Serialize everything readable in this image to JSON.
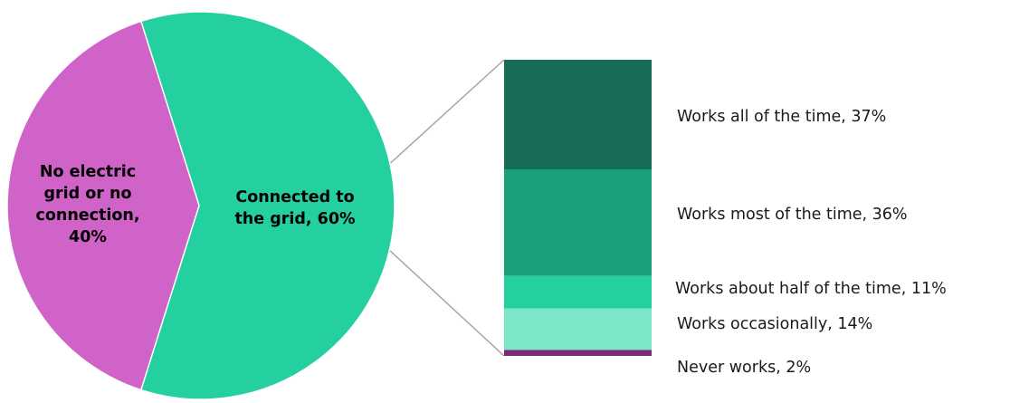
{
  "chart_data": {
    "type": "bar-of-pie",
    "pie": {
      "slices": [
        {
          "name": "No electric grid or no connection",
          "value": 40,
          "label_lines": [
            "No electric",
            "grid or no",
            "connection,",
            "40%"
          ],
          "color": "#cf63c8"
        },
        {
          "name": "Connected to the grid",
          "value": 60,
          "label_lines": [
            "Connected to",
            "the grid, 60%"
          ],
          "color": "#25d0a0"
        }
      ]
    },
    "bar": {
      "segments": [
        {
          "label": "Works all of the time, 37%",
          "value": 37,
          "color": "#166c56"
        },
        {
          "label": "Works most of the time, 36%",
          "value": 36,
          "color": "#1ca07c"
        },
        {
          "label": "Works about half of the time, 11%",
          "value": 11,
          "color": "#25d0a0"
        },
        {
          "label": "Works occasionally, 14%",
          "value": 14,
          "color": "#7ae8c8"
        },
        {
          "label": "Never works, 2%",
          "value": 2,
          "color": "#7b2a78"
        }
      ]
    },
    "connector_color": "#a6a6a6"
  }
}
